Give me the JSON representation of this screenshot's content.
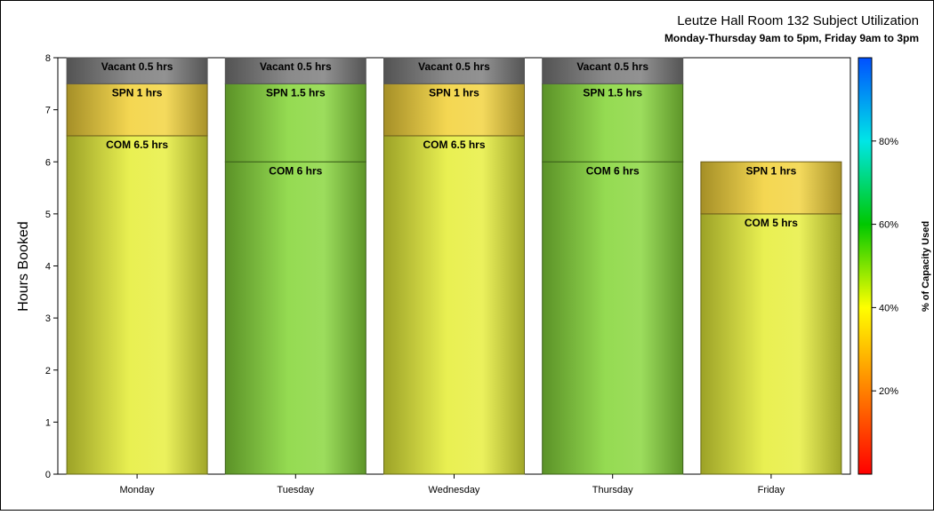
{
  "chart_data": {
    "type": "bar",
    "stacked": true,
    "title": "Leutze Hall Room 132 Subject Utilization",
    "subtitle": "Monday-Thursday 9am to 5pm, Friday 9am to 3pm",
    "ylabel": "Hours Booked",
    "xlabel": "",
    "ylim": [
      0,
      8
    ],
    "yticks": [
      "0",
      "1",
      "2",
      "3",
      "4",
      "5",
      "6",
      "7",
      "8"
    ],
    "categories": [
      "Monday",
      "Tuesday",
      "Wednesday",
      "Thursday",
      "Friday"
    ],
    "stacks": [
      {
        "category": "Monday",
        "segments": [
          {
            "subject": "COM",
            "value": 6.5,
            "label": "COM 6.5 hrs",
            "color": "#e6ee3a"
          },
          {
            "subject": "SPN",
            "value": 1,
            "label": "SPN 1 hrs",
            "color": "#f2d23a"
          },
          {
            "subject": "Vacant",
            "value": 0.5,
            "label": "Vacant 0.5 hrs",
            "color": "#7a7a7a"
          }
        ]
      },
      {
        "category": "Tuesday",
        "segments": [
          {
            "subject": "COM",
            "value": 6,
            "label": "COM 6 hrs",
            "color": "#86d63a"
          },
          {
            "subject": "SPN",
            "value": 1.5,
            "label": "SPN 1.5 hrs",
            "color": "#86d63a"
          },
          {
            "subject": "Vacant",
            "value": 0.5,
            "label": "Vacant 0.5 hrs",
            "color": "#7a7a7a"
          }
        ]
      },
      {
        "category": "Wednesday",
        "segments": [
          {
            "subject": "COM",
            "value": 6.5,
            "label": "COM 6.5 hrs",
            "color": "#e6ee3a"
          },
          {
            "subject": "SPN",
            "value": 1,
            "label": "SPN 1 hrs",
            "color": "#f2d23a"
          },
          {
            "subject": "Vacant",
            "value": 0.5,
            "label": "Vacant 0.5 hrs",
            "color": "#7a7a7a"
          }
        ]
      },
      {
        "category": "Thursday",
        "segments": [
          {
            "subject": "COM",
            "value": 6,
            "label": "COM 6 hrs",
            "color": "#86d63a"
          },
          {
            "subject": "SPN",
            "value": 1.5,
            "label": "SPN 1.5 hrs",
            "color": "#86d63a"
          },
          {
            "subject": "Vacant",
            "value": 0.5,
            "label": "Vacant 0.5 hrs",
            "color": "#7a7a7a"
          }
        ]
      },
      {
        "category": "Friday",
        "segments": [
          {
            "subject": "COM",
            "value": 5,
            "label": "COM 5 hrs",
            "color": "#e6ee3a"
          },
          {
            "subject": "SPN",
            "value": 1,
            "label": "SPN 1 hrs",
            "color": "#f2d23a"
          }
        ]
      }
    ],
    "colorbar": {
      "title": "% of Capacity Used",
      "range": [
        0,
        100
      ],
      "ticks": [
        {
          "value": 20,
          "label": "20%"
        },
        {
          "value": 40,
          "label": "40%"
        },
        {
          "value": 60,
          "label": "60%"
        },
        {
          "value": 80,
          "label": "80%"
        }
      ],
      "stops": [
        "#ff0000",
        "#ff8000",
        "#ffff00",
        "#00c800",
        "#00e6e6",
        "#0050ff"
      ]
    },
    "grid": false,
    "legend": "none"
  }
}
